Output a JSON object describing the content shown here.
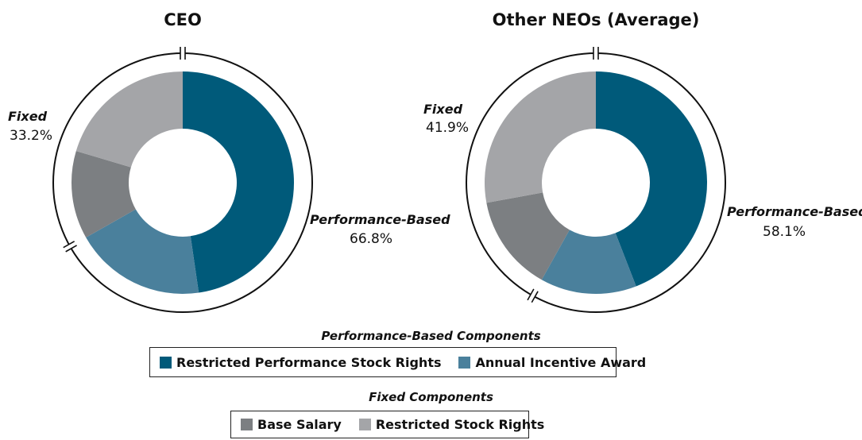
{
  "chart_data": [
    {
      "type": "donut",
      "title": "CEO",
      "categories": [
        "Restricted Performance Stock Rights",
        "Annual Incentive Award",
        "Base Salary",
        "Restricted Stock Rights"
      ],
      "values": [
        47.7,
        19.1,
        12.8,
        20.4
      ],
      "colors": [
        "#005a7a",
        "#4a809c",
        "#7c7f82",
        "#a4a5a8"
      ],
      "groups": [
        {
          "name": "Performance-Based",
          "value": 66.8,
          "label": "66.8%"
        },
        {
          "name": "Fixed",
          "value": 33.2,
          "label": "33.2%"
        }
      ]
    },
    {
      "type": "donut",
      "title": "Other NEOs (Average)",
      "categories": [
        "Restricted Performance Stock Rights",
        "Annual Incentive Award",
        "Base Salary",
        "Restricted Stock Rights"
      ],
      "values": [
        44.1,
        14.0,
        14.0,
        27.9
      ],
      "colors": [
        "#005a7a",
        "#4a809c",
        "#7c7f82",
        "#a4a5a8"
      ],
      "groups": [
        {
          "name": "Performance-Based",
          "value": 58.1,
          "label": "58.1%"
        },
        {
          "name": "Fixed",
          "value": 41.9,
          "label": "41.9%"
        }
      ]
    }
  ],
  "legend": [
    {
      "title": "Performance-Based Components",
      "items": [
        {
          "name": "Restricted Performance Stock Rights",
          "color": "#005a7a"
        },
        {
          "name": "Annual Incentive Award",
          "color": "#4a809c"
        }
      ]
    },
    {
      "title": "Fixed Components",
      "items": [
        {
          "name": "Base Salary",
          "color": "#7c7f82"
        },
        {
          "name": "Restricted Stock Rights",
          "color": "#a4a5a8"
        }
      ]
    }
  ]
}
